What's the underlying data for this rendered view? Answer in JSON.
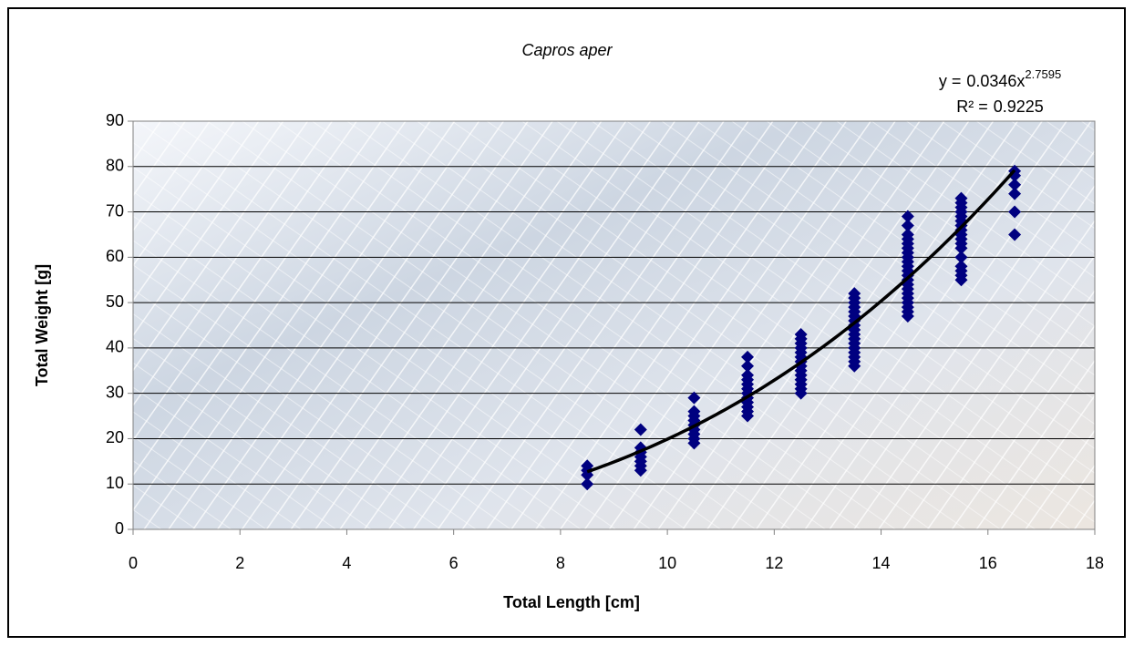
{
  "chart_data": {
    "type": "scatter",
    "title": "Capros aper",
    "xlabel": "Total Length [cm]",
    "ylabel": "Total Weight [g]",
    "xlim": [
      0,
      18
    ],
    "xticks": [
      0,
      2,
      4,
      6,
      8,
      10,
      12,
      14,
      16,
      18
    ],
    "ylim": [
      0,
      90
    ],
    "yticks": [
      0,
      10,
      20,
      30,
      40,
      50,
      60,
      70,
      80,
      90
    ],
    "grid": true,
    "series": [
      {
        "color": "#000080",
        "x": [
          8.5,
          8.5,
          8.5,
          8.5,
          9.5,
          9.5,
          9.5,
          9.5,
          9.5,
          9.5,
          9.5,
          10.5,
          10.5,
          10.5,
          10.5,
          10.5,
          10.5,
          10.5,
          10.5,
          10.5,
          11.5,
          11.5,
          11.5,
          11.5,
          11.5,
          11.5,
          11.5,
          11.5,
          11.5,
          11.5,
          11.5,
          11.5,
          12.5,
          12.5,
          12.5,
          12.5,
          12.5,
          12.5,
          12.5,
          12.5,
          12.5,
          12.5,
          12.5,
          12.5,
          12.5,
          12.5,
          13.5,
          13.5,
          13.5,
          13.5,
          13.5,
          13.5,
          13.5,
          13.5,
          13.5,
          13.5,
          13.5,
          13.5,
          13.5,
          13.5,
          13.5,
          13.5,
          13.5,
          14.5,
          14.5,
          14.5,
          14.5,
          14.5,
          14.5,
          14.5,
          14.5,
          14.5,
          14.5,
          14.5,
          14.5,
          14.5,
          14.5,
          14.5,
          14.5,
          14.5,
          14.5,
          14.5,
          14.5,
          14.5,
          15.5,
          15.5,
          15.5,
          15.5,
          15.5,
          15.5,
          15.5,
          15.5,
          15.5,
          15.5,
          15.5,
          15.5,
          15.5,
          15.5,
          15.5,
          15.5,
          15.5,
          16.5,
          16.5,
          16.5,
          16.5,
          16.5,
          16.5
        ],
        "values": [
          10,
          12,
          13,
          14,
          13,
          14,
          15,
          16,
          17,
          18,
          22,
          19,
          20,
          21,
          22,
          23,
          24,
          25,
          26,
          29,
          25,
          26,
          27,
          28,
          29,
          30,
          31,
          32,
          33,
          34,
          36,
          38,
          30,
          31,
          32,
          33,
          34,
          35,
          36,
          37,
          38,
          39,
          40,
          41,
          42,
          43,
          36,
          37,
          38,
          39,
          40,
          41,
          42,
          43,
          44,
          45,
          46,
          47,
          48,
          49,
          50,
          51,
          52,
          47,
          48,
          49,
          50,
          51,
          52,
          53,
          54,
          55,
          56,
          57,
          58,
          59,
          60,
          61,
          62,
          63,
          64,
          65,
          67,
          69,
          55,
          56,
          57,
          58,
          60,
          62,
          63,
          64,
          65,
          66,
          67,
          68,
          69,
          70,
          71,
          72,
          73,
          65,
          70,
          74,
          76,
          78,
          79
        ]
      }
    ],
    "trendline": {
      "type": "power",
      "color": "#000000",
      "equation_prefix": "y =",
      "a": 0.0346,
      "variable": "x",
      "b": 2.7595,
      "r2_prefix": "R² =",
      "r2": 0.9225
    }
  }
}
